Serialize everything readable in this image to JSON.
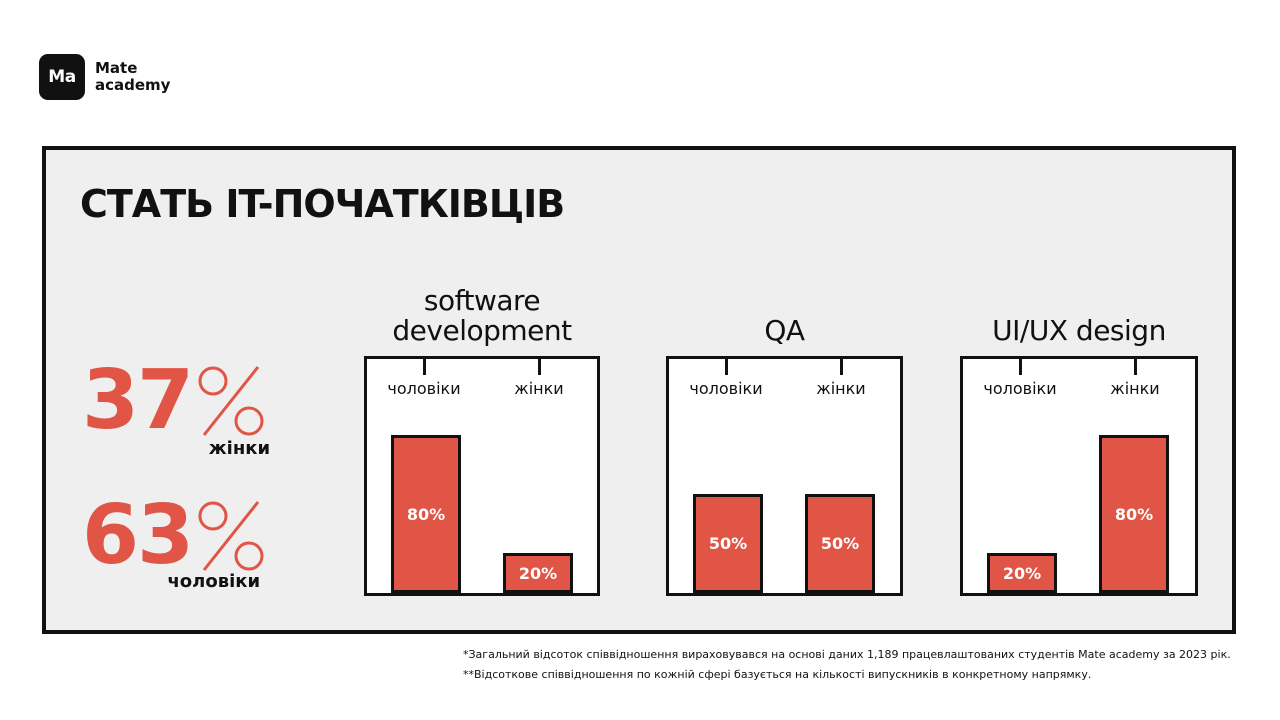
{
  "brand": {
    "mark": "Ma",
    "line1": "Mate",
    "line2": "academy"
  },
  "title": "СТАТЬ IT-ПОЧАТКІВЦІВ",
  "stats": [
    {
      "value": "37",
      "label": "жінки"
    },
    {
      "value": "63",
      "label": "чоловіки"
    }
  ],
  "accent_color": "#e05545",
  "chart_data": [
    {
      "type": "bar",
      "title": [
        "software",
        "development"
      ],
      "categories": [
        "чоловіки",
        "жінки"
      ],
      "values": [
        80,
        20
      ],
      "labels": [
        "80%",
        "20%"
      ],
      "ylim": [
        0,
        100
      ]
    },
    {
      "type": "bar",
      "title": [
        "QA"
      ],
      "categories": [
        "чоловіки",
        "жінки"
      ],
      "values": [
        50,
        50
      ],
      "labels": [
        "50%",
        "50%"
      ],
      "ylim": [
        0,
        100
      ]
    },
    {
      "type": "bar",
      "title": [
        "UI/UX design"
      ],
      "categories": [
        "чоловіки",
        "жінки"
      ],
      "values": [
        20,
        80
      ],
      "labels": [
        "20%",
        "80%"
      ],
      "ylim": [
        0,
        100
      ]
    }
  ],
  "footnotes": [
    "*Загальний відсоток співвідношення вираховувався на основі даних 1,189 працевлаштованих студентів Mate academy за 2023 рік.",
    "**Відсоткове співвідношення по кожній сфері базується на кількості випускників в конкретному напрямку."
  ]
}
